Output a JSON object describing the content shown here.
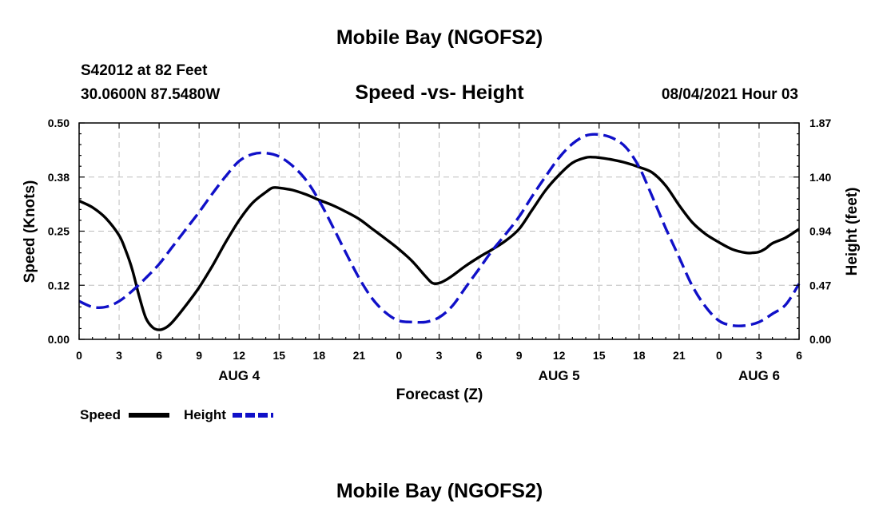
{
  "header": {
    "top_title": "Mobile Bay (NGOFS2)",
    "station": "S42012 at 82 Feet",
    "coords": "30.0600N  87.5480W",
    "subtitle": "Speed -vs- Height",
    "datetime": "08/04/2021 Hour 03",
    "bottom_title": "Mobile Bay (NGOFS2)"
  },
  "legend": {
    "speed_label": "Speed",
    "height_label": "Height"
  },
  "colors": {
    "speed": "#000000",
    "height": "#1010c8"
  },
  "chart_data": {
    "type": "line",
    "xlabel": "Forecast (Z)",
    "ylabel_left": "Speed (Knots)",
    "ylabel_right": "Height (feet)",
    "x_unit": "hours from Aug 4 00Z",
    "xlim": [
      0,
      54
    ],
    "x_ticks": [
      0,
      3,
      6,
      9,
      12,
      15,
      18,
      21,
      24,
      27,
      30,
      33,
      36,
      39,
      42,
      45,
      48,
      51,
      54
    ],
    "x_tick_labels": [
      "0",
      "3",
      "6",
      "9",
      "12",
      "15",
      "18",
      "21",
      "0",
      "3",
      "6",
      "9",
      "12",
      "15",
      "18",
      "21",
      "0",
      "3",
      "6"
    ],
    "date_labels": [
      {
        "label": "AUG 4",
        "x": 12
      },
      {
        "label": "AUG 5",
        "x": 36
      },
      {
        "label": "AUG 6",
        "x": 51
      }
    ],
    "ylim_left": [
      0,
      0.5
    ],
    "y_ticks_left": [
      0,
      0.125,
      0.25,
      0.375,
      0.5
    ],
    "y_tick_labels_left": [
      "0.00",
      "0.12",
      "0.25",
      "0.38",
      "0.50"
    ],
    "ylim_right": [
      0,
      1.87
    ],
    "y_ticks_right": [
      0,
      0.4675,
      0.935,
      1.4025,
      1.87
    ],
    "y_tick_labels_right": [
      "0.00",
      "0.47",
      "0.94",
      "1.40",
      "1.87"
    ],
    "grid": true,
    "legend_position": "bottom-left",
    "series": [
      {
        "name": "Speed",
        "axis": "left",
        "style": "solid",
        "x": [
          0,
          1,
          2,
          3,
          3.5,
          4,
          4.5,
          5,
          5.5,
          6,
          6.5,
          7,
          8,
          9,
          10,
          11,
          12,
          13,
          14,
          14.5,
          15,
          16,
          17,
          18,
          19,
          20,
          21,
          22,
          23,
          24,
          25,
          26,
          26.5,
          27,
          27.5,
          28,
          29,
          30,
          31,
          32,
          33,
          34,
          35,
          36,
          37,
          38,
          38.5,
          39,
          40,
          41,
          42,
          43,
          44,
          45,
          46,
          47,
          48,
          49,
          50,
          50.5,
          51,
          51.5,
          52,
          53,
          54
        ],
        "y": [
          0.32,
          0.305,
          0.28,
          0.24,
          0.205,
          0.16,
          0.1,
          0.05,
          0.028,
          0.022,
          0.027,
          0.04,
          0.078,
          0.12,
          0.17,
          0.225,
          0.275,
          0.315,
          0.34,
          0.35,
          0.35,
          0.345,
          0.335,
          0.322,
          0.31,
          0.295,
          0.278,
          0.255,
          0.232,
          0.208,
          0.18,
          0.145,
          0.13,
          0.13,
          0.137,
          0.147,
          0.17,
          0.19,
          0.208,
          0.228,
          0.255,
          0.3,
          0.345,
          0.38,
          0.408,
          0.42,
          0.421,
          0.42,
          0.415,
          0.408,
          0.398,
          0.385,
          0.355,
          0.31,
          0.27,
          0.243,
          0.224,
          0.208,
          0.2,
          0.2,
          0.202,
          0.21,
          0.222,
          0.235,
          0.255
        ]
      },
      {
        "name": "Height",
        "axis": "right",
        "style": "dashed",
        "x": [
          0,
          1,
          2,
          3,
          4,
          5,
          6,
          7,
          8,
          9,
          10,
          11,
          12,
          13,
          14,
          15,
          16,
          17,
          18,
          19,
          20,
          21,
          22,
          23,
          24,
          25,
          26,
          27,
          28,
          29,
          30,
          31,
          32,
          33,
          34,
          35,
          36,
          37,
          38,
          39,
          40,
          41,
          42,
          43,
          44,
          45,
          46,
          47,
          48,
          49,
          50,
          51,
          52,
          53,
          54
        ],
        "y": [
          0.33,
          0.28,
          0.28,
          0.33,
          0.42,
          0.53,
          0.65,
          0.8,
          0.95,
          1.1,
          1.26,
          1.41,
          1.54,
          1.6,
          1.61,
          1.58,
          1.5,
          1.38,
          1.2,
          0.98,
          0.75,
          0.53,
          0.35,
          0.23,
          0.16,
          0.15,
          0.15,
          0.19,
          0.29,
          0.45,
          0.61,
          0.77,
          0.91,
          1.06,
          1.24,
          1.41,
          1.57,
          1.69,
          1.76,
          1.77,
          1.74,
          1.66,
          1.49,
          1.23,
          0.96,
          0.71,
          0.46,
          0.28,
          0.16,
          0.12,
          0.12,
          0.15,
          0.22,
          0.3,
          0.48
        ]
      }
    ]
  }
}
